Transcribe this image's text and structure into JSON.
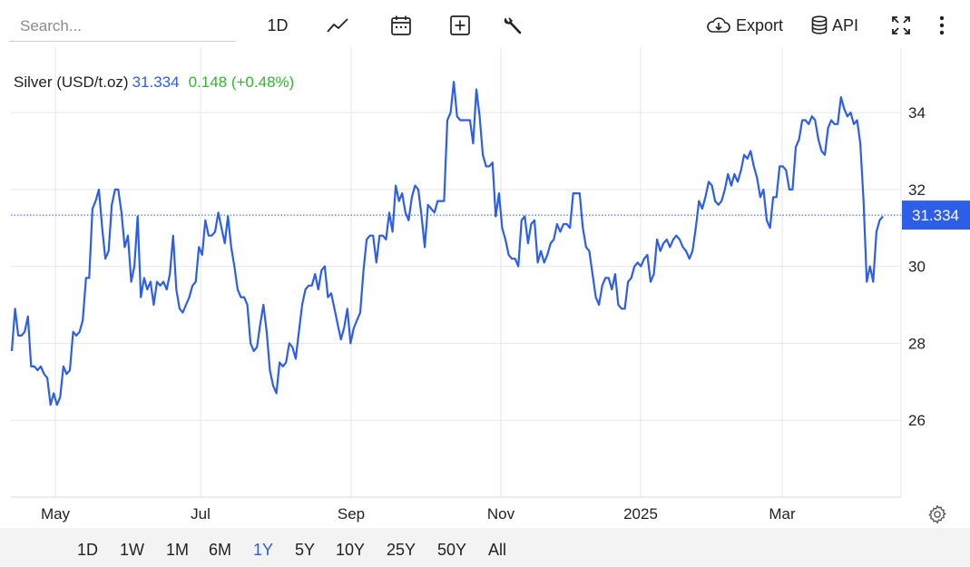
{
  "toolbar": {
    "search_placeholder": "Search...",
    "interval_label": "1D",
    "chart_type_icon": "line-chart-icon",
    "calendar_icon": "calendar-icon",
    "compare_icon": "plus-square-icon",
    "tools_icon": "wrench-icon",
    "export_label": "Export",
    "api_label": "API",
    "fullscreen_icon": "fullscreen-icon",
    "more_icon": "vertical-dots-icon"
  },
  "legend": {
    "name": "Silver (USD/t.oz)",
    "price": "31.334",
    "change": "0.148 (+0.48%)"
  },
  "colors": {
    "line": "#2d5ee8",
    "change_up": "#2eb82e",
    "grid": "#e6e6e6",
    "price_tag_bg": "#2d5ee8"
  },
  "chart_data": {
    "type": "line",
    "title": "Silver (USD/t.oz)",
    "xlabel": "",
    "ylabel": "",
    "ylim": [
      24.0,
      35.7
    ],
    "y_ticks": [
      26,
      28,
      30,
      32,
      34
    ],
    "x_ticks": [
      "May",
      "Jul",
      "Sep",
      "Nov",
      "2025",
      "Mar"
    ],
    "current_value": 31.334,
    "current_label": "31.334",
    "grid": true,
    "series": [
      {
        "values": [
          27.8,
          28.9,
          28.2,
          28.2,
          28.3,
          28.7,
          27.4,
          27.4,
          27.3,
          27.4,
          27.2,
          27.1,
          26.4,
          26.7,
          26.4,
          26.6,
          27.4,
          27.2,
          27.3,
          28.3,
          28.2,
          28.3,
          28.6,
          29.7,
          29.7,
          31.5,
          31.7,
          32.0,
          31.0,
          30.2,
          30.4,
          31.6,
          32.0,
          32.0,
          31.4,
          30.5,
          30.8,
          29.6,
          30.0,
          31.3,
          29.2,
          29.7,
          29.4,
          29.6,
          29.0,
          29.6,
          29.5,
          29.6,
          29.4,
          29.8,
          30.8,
          29.4,
          28.9,
          28.8,
          29.0,
          29.2,
          29.5,
          29.6,
          30.5,
          30.3,
          31.2,
          30.8,
          30.8,
          30.9,
          31.4,
          31.0,
          30.6,
          31.3,
          30.5,
          30.0,
          29.4,
          29.2,
          29.2,
          29.0,
          28.0,
          27.8,
          27.9,
          28.5,
          29.0,
          28.3,
          27.3,
          26.9,
          26.7,
          27.5,
          27.4,
          27.5,
          28.0,
          27.9,
          27.6,
          28.3,
          29.0,
          29.4,
          29.5,
          29.5,
          29.8,
          29.4,
          29.9,
          30.0,
          29.2,
          29.3,
          28.9,
          28.5,
          28.1,
          28.4,
          28.9,
          28.0,
          28.4,
          28.6,
          28.8,
          29.9,
          30.7,
          30.8,
          30.8,
          30.1,
          30.8,
          30.8,
          30.7,
          31.4,
          30.9,
          32.1,
          31.7,
          31.9,
          31.4,
          31.2,
          31.8,
          32.1,
          32.0,
          31.3,
          30.5,
          31.6,
          31.5,
          31.4,
          31.7,
          31.7,
          31.7,
          33.8,
          34.0,
          34.8,
          33.9,
          33.8,
          33.8,
          33.8,
          33.8,
          33.2,
          34.6,
          33.9,
          32.9,
          32.6,
          32.6,
          32.7,
          31.3,
          31.9,
          31.0,
          30.7,
          30.3,
          30.2,
          30.2,
          30.0,
          31.2,
          31.3,
          30.6,
          31.1,
          31.2,
          30.1,
          30.4,
          30.1,
          30.3,
          30.6,
          30.7,
          31.1,
          30.9,
          31.1,
          31.1,
          31.0,
          31.9,
          31.9,
          31.9,
          31.0,
          30.5,
          30.4,
          29.8,
          29.2,
          29.0,
          29.5,
          29.7,
          29.7,
          29.4,
          29.8,
          29.0,
          28.9,
          28.9,
          29.6,
          29.7,
          30.0,
          30.1,
          30.0,
          30.2,
          30.3,
          29.6,
          29.8,
          30.7,
          30.4,
          30.6,
          30.7,
          30.5,
          30.7,
          30.8,
          30.7,
          30.5,
          30.4,
          30.2,
          30.4,
          31.0,
          31.7,
          31.5,
          31.8,
          32.2,
          32.1,
          31.7,
          31.6,
          31.7,
          32.0,
          32.4,
          32.1,
          32.4,
          32.2,
          32.5,
          32.9,
          32.8,
          33.0,
          32.6,
          32.3,
          31.8,
          32.0,
          31.2,
          31.0,
          31.8,
          31.8,
          32.6,
          32.6,
          32.5,
          32.0,
          32.0,
          33.1,
          33.3,
          33.8,
          33.8,
          33.7,
          33.9,
          33.8,
          33.3,
          33.0,
          32.9,
          33.6,
          33.8,
          33.7,
          33.7,
          34.4,
          34.1,
          33.9,
          34.0,
          33.7,
          33.8,
          33.2,
          31.7,
          29.6,
          30.0,
          29.6,
          30.9,
          31.2,
          31.3
        ]
      }
    ]
  },
  "ranges": [
    "1D",
    "1W",
    "1M",
    "6M",
    "1Y",
    "5Y",
    "10Y",
    "25Y",
    "50Y",
    "All"
  ],
  "active_range": "1Y",
  "settings_icon": "gear-icon"
}
